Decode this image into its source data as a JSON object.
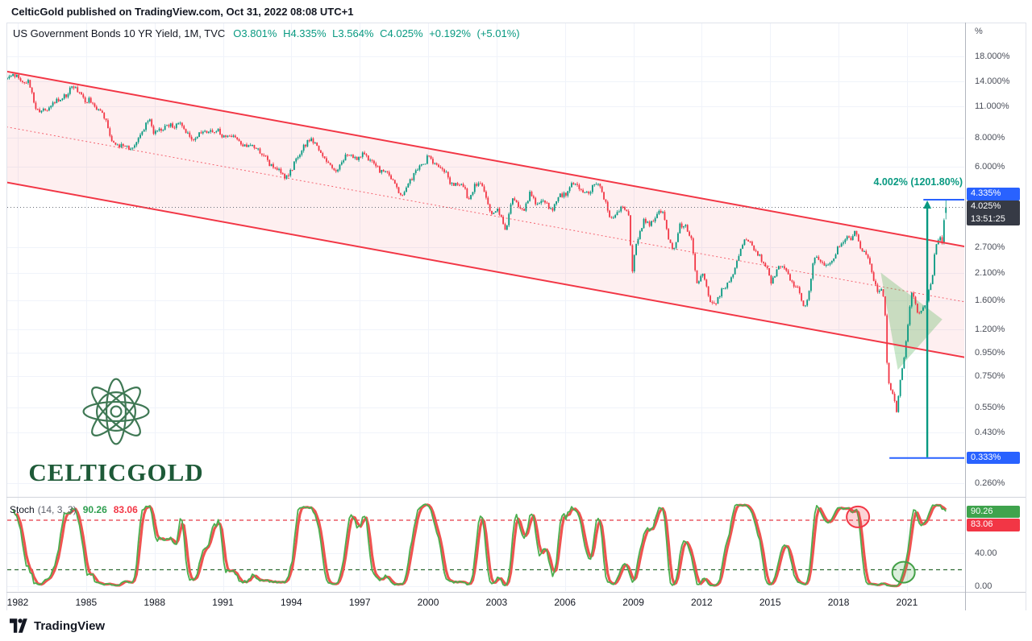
{
  "header": {
    "publish_line": "CelticGold published on TradingView.com, Oct 31, 2022 08:08 UTC+1"
  },
  "chart": {
    "legend": {
      "symbol": "US Government Bonds 10 YR Yield, 1M, TVC",
      "ohlc": "O3.801% H4.335% L3.564% C4.025% +0.192% (+5.01%)"
    },
    "measure_label": "4.002% (1201.80%)"
  },
  "stoch_legend": {
    "label": "Stoch",
    "params": "(14, 3, 3)",
    "k": "90.26",
    "d": "83.06"
  },
  "logo": {
    "text": "CELTICGOLD"
  },
  "footer": {
    "brand": "TradingView"
  },
  "chart_data": {
    "type": "candlestick",
    "title": "US Government Bonds 10 YR Yield, 1M, TVC",
    "symbol": "US Government Bonds 10 YR Yield",
    "interval": "1M",
    "exchange": "TVC",
    "current_bar": {
      "open": 3.801,
      "high": 4.335,
      "low": 3.564,
      "close": 4.025,
      "change_text": "+0.192% (+5.01%)",
      "countdown": "13:51:25"
    },
    "y_axis": {
      "unit": "%",
      "scale": "log",
      "ticks": [
        {
          "value": 18,
          "label": "18.000%"
        },
        {
          "value": 14,
          "label": "14.000%"
        },
        {
          "value": 11,
          "label": "11.000%"
        },
        {
          "value": 8,
          "label": "8.000%"
        },
        {
          "value": 6,
          "label": "6.000%"
        },
        {
          "value": 2.7,
          "label": "2.700%"
        },
        {
          "value": 2.1,
          "label": "2.100%"
        },
        {
          "value": 1.6,
          "label": "1.600%"
        },
        {
          "value": 1.2,
          "label": "1.200%"
        },
        {
          "value": 0.95,
          "label": "0.950%"
        },
        {
          "value": 0.75,
          "label": "0.750%"
        },
        {
          "value": 0.55,
          "label": "0.550%"
        },
        {
          "value": 0.43,
          "label": "0.430%"
        },
        {
          "value": 0.26,
          "label": "0.260%"
        }
      ],
      "badges": [
        {
          "value": 4.335,
          "label": "4.335%",
          "bg": "#2962ff",
          "type": "range-high"
        },
        {
          "value": 4.025,
          "label": "4.025%",
          "sub": "13:51:25",
          "bg": "#363a45",
          "type": "last-price"
        },
        {
          "value": 0.333,
          "label": "0.333%",
          "bg": "#2962ff",
          "type": "range-low"
        }
      ]
    },
    "x_axis": {
      "ticks": [
        1982,
        1985,
        1988,
        1991,
        1994,
        1997,
        2000,
        2003,
        2006,
        2009,
        2012,
        2015,
        2018,
        2021
      ],
      "start": 1981.5,
      "end": 2023.55
    },
    "yield_path": [
      [
        1980.4,
        11.4
      ],
      [
        1980.6,
        12.5
      ],
      [
        1980.8,
        12.8
      ],
      [
        1981.0,
        13.0
      ],
      [
        1981.2,
        13.6
      ],
      [
        1981.5,
        14.6
      ],
      [
        1981.8,
        15.3
      ],
      [
        1981.95,
        14.8
      ],
      [
        1982.1,
        14.3
      ],
      [
        1982.3,
        13.6
      ],
      [
        1982.5,
        14.2
      ],
      [
        1982.65,
        13.0
      ],
      [
        1982.8,
        10.6
      ],
      [
        1983.0,
        10.5
      ],
      [
        1983.3,
        10.5
      ],
      [
        1983.6,
        11.4
      ],
      [
        1983.9,
        11.8
      ],
      [
        1984.2,
        12.3
      ],
      [
        1984.45,
        13.7
      ],
      [
        1984.7,
        12.5
      ],
      [
        1985.0,
        11.5
      ],
      [
        1985.2,
        11.8
      ],
      [
        1985.5,
        10.5
      ],
      [
        1985.8,
        10.2
      ],
      [
        1986.1,
        8.1
      ],
      [
        1986.35,
        7.3
      ],
      [
        1986.6,
        7.5
      ],
      [
        1986.9,
        7.2
      ],
      [
        1987.2,
        7.6
      ],
      [
        1987.5,
        8.6
      ],
      [
        1987.8,
        9.6
      ],
      [
        1988.0,
        8.4
      ],
      [
        1988.3,
        8.6
      ],
      [
        1988.6,
        9.1
      ],
      [
        1988.9,
        9.0
      ],
      [
        1989.2,
        9.4
      ],
      [
        1989.5,
        8.3
      ],
      [
        1989.8,
        7.9
      ],
      [
        1990.0,
        8.4
      ],
      [
        1990.3,
        8.6
      ],
      [
        1990.6,
        8.5
      ],
      [
        1990.8,
        8.8
      ],
      [
        1991.0,
        8.1
      ],
      [
        1991.3,
        8.1
      ],
      [
        1991.6,
        8.2
      ],
      [
        1991.9,
        7.4
      ],
      [
        1992.2,
        7.5
      ],
      [
        1992.5,
        7.1
      ],
      [
        1992.8,
        6.9
      ],
      [
        1993.1,
        6.1
      ],
      [
        1993.5,
        5.8
      ],
      [
        1993.8,
        5.4
      ],
      [
        1994.1,
        6.0
      ],
      [
        1994.5,
        7.2
      ],
      [
        1994.9,
        8.0
      ],
      [
        1995.2,
        7.2
      ],
      [
        1995.6,
        6.3
      ],
      [
        1996.0,
        5.6
      ],
      [
        1996.3,
        6.5
      ],
      [
        1996.6,
        6.9
      ],
      [
        1996.9,
        6.4
      ],
      [
        1997.2,
        6.9
      ],
      [
        1997.5,
        6.4
      ],
      [
        1997.9,
        5.8
      ],
      [
        1998.2,
        5.6
      ],
      [
        1998.5,
        5.4
      ],
      [
        1998.8,
        4.4
      ],
      [
        1999.1,
        4.9
      ],
      [
        1999.5,
        5.7
      ],
      [
        1999.9,
        6.3
      ],
      [
        2000.05,
        6.7
      ],
      [
        2000.4,
        6.0
      ],
      [
        2000.8,
        5.7
      ],
      [
        2001.0,
        5.1
      ],
      [
        2001.3,
        5.1
      ],
      [
        2001.6,
        5.0
      ],
      [
        2001.8,
        4.3
      ],
      [
        2002.1,
        5.0
      ],
      [
        2002.4,
        5.1
      ],
      [
        2002.7,
        4.1
      ],
      [
        2002.85,
        3.7
      ],
      [
        2003.1,
        3.9
      ],
      [
        2003.45,
        3.2
      ],
      [
        2003.7,
        4.4
      ],
      [
        2004.0,
        4.1
      ],
      [
        2004.25,
        3.8
      ],
      [
        2004.5,
        4.7
      ],
      [
        2004.8,
        4.1
      ],
      [
        2005.1,
        4.3
      ],
      [
        2005.45,
        3.9
      ],
      [
        2005.8,
        4.5
      ],
      [
        2006.1,
        4.6
      ],
      [
        2006.45,
        5.2
      ],
      [
        2006.8,
        4.6
      ],
      [
        2007.1,
        4.7
      ],
      [
        2007.45,
        5.2
      ],
      [
        2007.8,
        4.3
      ],
      [
        2008.05,
        3.6
      ],
      [
        2008.35,
        3.9
      ],
      [
        2008.6,
        4.0
      ],
      [
        2008.85,
        3.7
      ],
      [
        2008.98,
        2.1
      ],
      [
        2009.2,
        2.9
      ],
      [
        2009.5,
        3.5
      ],
      [
        2009.8,
        3.4
      ],
      [
        2010.1,
        3.8
      ],
      [
        2010.3,
        3.9
      ],
      [
        2010.6,
        2.9
      ],
      [
        2010.85,
        2.6
      ],
      [
        2011.1,
        3.4
      ],
      [
        2011.35,
        3.3
      ],
      [
        2011.6,
        2.9
      ],
      [
        2011.8,
        1.9
      ],
      [
        2012.1,
        2.1
      ],
      [
        2012.4,
        1.6
      ],
      [
        2012.6,
        1.5
      ],
      [
        2012.9,
        1.75
      ],
      [
        2013.2,
        1.9
      ],
      [
        2013.5,
        2.2
      ],
      [
        2013.8,
        2.75
      ],
      [
        2013.98,
        3.0
      ],
      [
        2014.3,
        2.7
      ],
      [
        2014.6,
        2.45
      ],
      [
        2014.9,
        2.2
      ],
      [
        2015.1,
        1.9
      ],
      [
        2015.4,
        2.2
      ],
      [
        2015.7,
        2.25
      ],
      [
        2016.0,
        1.9
      ],
      [
        2016.3,
        1.8
      ],
      [
        2016.55,
        1.45
      ],
      [
        2016.75,
        1.75
      ],
      [
        2016.95,
        2.4
      ],
      [
        2017.2,
        2.4
      ],
      [
        2017.5,
        2.25
      ],
      [
        2017.8,
        2.4
      ],
      [
        2018.1,
        2.8
      ],
      [
        2018.4,
        3.0
      ],
      [
        2018.6,
        2.9
      ],
      [
        2018.8,
        3.2
      ],
      [
        2019.0,
        2.7
      ],
      [
        2019.3,
        2.5
      ],
      [
        2019.55,
        2.0
      ],
      [
        2019.8,
        1.7
      ],
      [
        2019.95,
        1.85
      ],
      [
        2020.1,
        1.3
      ],
      [
        2020.2,
        0.72
      ],
      [
        2020.42,
        0.64
      ],
      [
        2020.58,
        0.53
      ],
      [
        2020.75,
        0.72
      ],
      [
        2020.9,
        0.86
      ],
      [
        2021.05,
        1.15
      ],
      [
        2021.22,
        1.72
      ],
      [
        2021.4,
        1.6
      ],
      [
        2021.55,
        1.35
      ],
      [
        2021.7,
        1.5
      ],
      [
        2021.85,
        1.5
      ],
      [
        2022.0,
        1.8
      ],
      [
        2022.15,
        2.0
      ],
      [
        2022.28,
        2.65
      ],
      [
        2022.42,
        2.95
      ],
      [
        2022.5,
        3.0
      ],
      [
        2022.56,
        2.7
      ],
      [
        2022.6,
        2.95
      ],
      [
        2022.69,
        3.8
      ],
      [
        2022.8,
        4.03
      ]
    ],
    "channel": {
      "color": "#f23645",
      "fill": "rgba(242,54,69,0.08)",
      "upper": [
        [
          1981.5,
          15.5
        ],
        [
          2023.55,
          2.72
        ]
      ],
      "lower": [
        [
          1981.5,
          5.15
        ],
        [
          2023.55,
          0.905
        ]
      ]
    },
    "wedge": {
      "fill": "rgba(76,175,80,0.30)",
      "points": [
        [
          2019.85,
          2.1
        ],
        [
          2022.55,
          1.32
        ],
        [
          2020.6,
          0.8
        ]
      ]
    },
    "measure": {
      "arrow_year": 2021.89,
      "from": 0.333,
      "to": 4.335,
      "high_line_start_year": 2021.72,
      "low_line_start_year": 2020.23,
      "line_color": "#2962ff",
      "arrow_color": "#089981",
      "label": "4.002% (1201.80%)"
    },
    "last_price_line": 4.025,
    "stochastic": {
      "params": [
        14,
        3,
        3
      ],
      "k": 90.26,
      "d": 83.06,
      "upper_band": 80,
      "lower_band": 20,
      "band_colors": {
        "upper": "#e53945",
        "lower": "#2e6b33"
      },
      "k_color": "#4caf50",
      "d_color": "#ef5350",
      "axis_ticks": [
        {
          "value": 40,
          "label": "40.00"
        },
        {
          "value": 0,
          "label": "0.00"
        }
      ],
      "badges": [
        {
          "value": 90.26,
          "label": "90.26",
          "bg": "#3fa34d"
        },
        {
          "value": 83.06,
          "label": "83.06",
          "bg": "#f23645"
        }
      ],
      "circles": [
        {
          "year": 2018.85,
          "value": 84,
          "color": "#f23645",
          "fill": "rgba(242,54,69,0.22)"
        },
        {
          "year": 2020.85,
          "value": 17,
          "color": "#43a047",
          "fill": "rgba(76,175,80,0.20)"
        }
      ]
    },
    "candle_colors": {
      "up": "#089981",
      "down": "#f23645"
    }
  }
}
